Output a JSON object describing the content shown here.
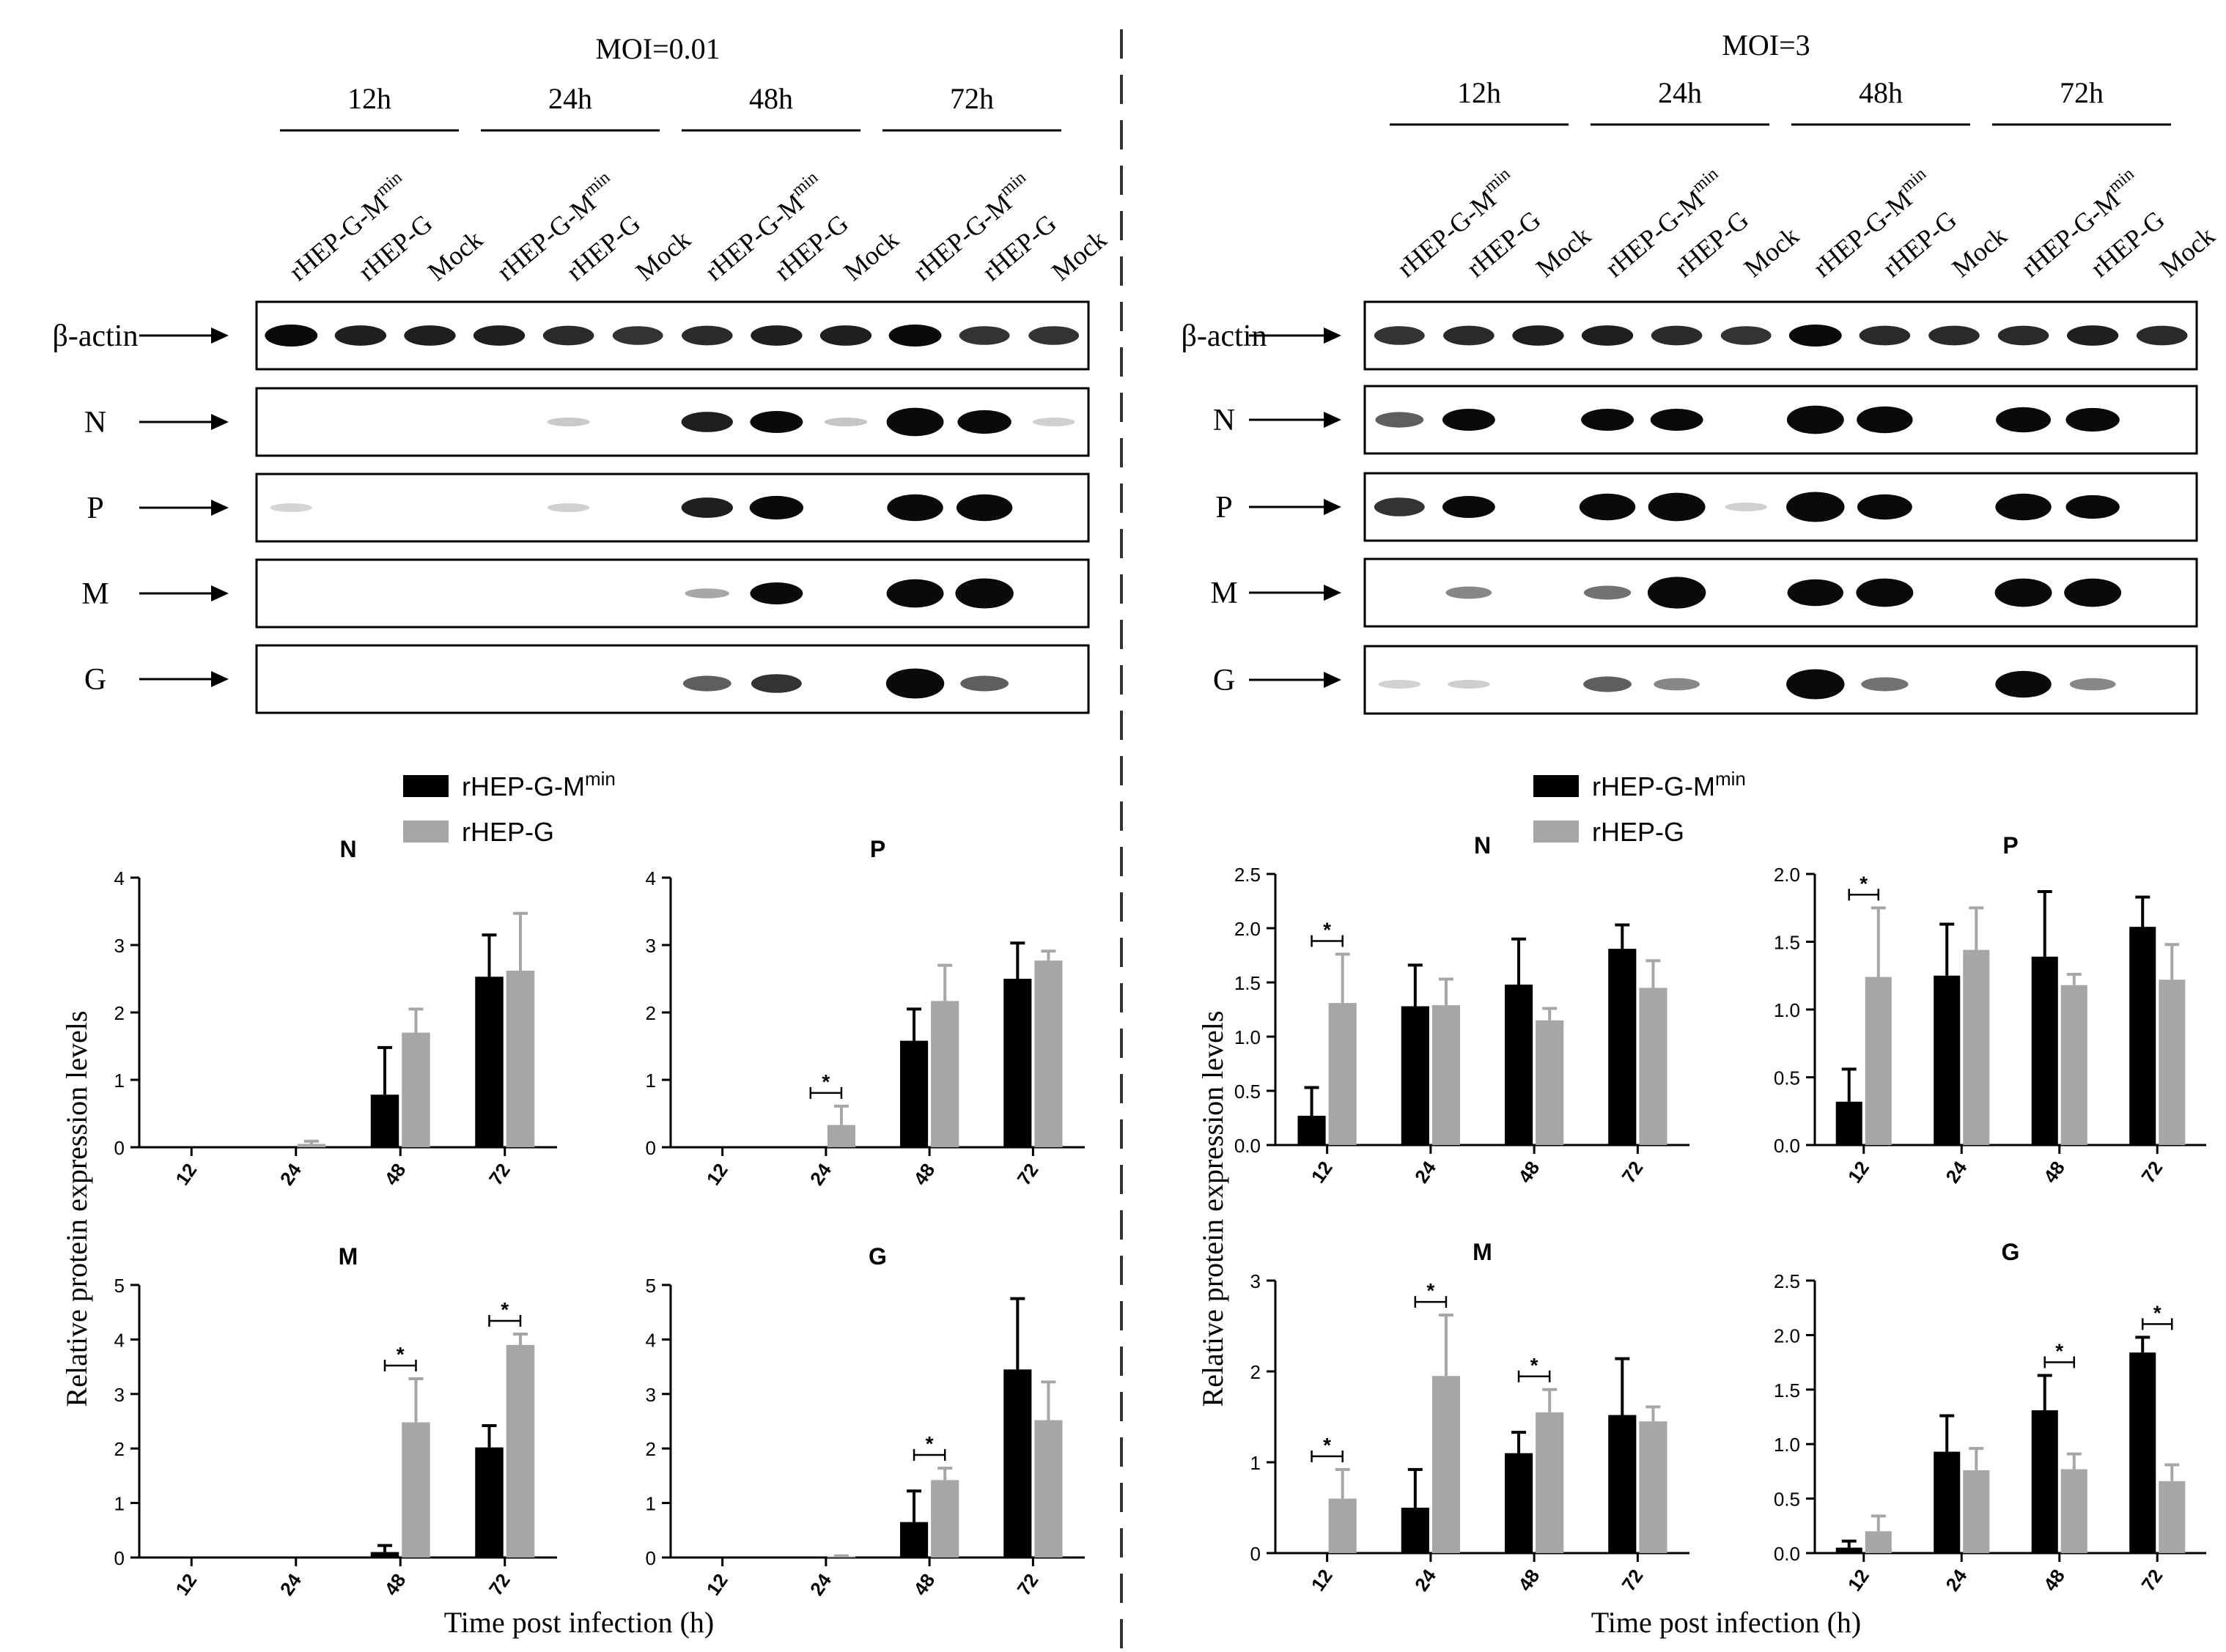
{
  "colors": {
    "black_series": "#000000",
    "grey_series": "#a6a6a6",
    "band": "#0a0a0a"
  },
  "panels": [
    {
      "moi_label": "MOI=0.01",
      "times": [
        "12h",
        "24h",
        "48h",
        "72h"
      ],
      "lanes": [
        "rHEP-G-M",
        "rHEP-G",
        "Mock",
        "rHEP-G-M",
        "rHEP-G",
        "Mock",
        "rHEP-G-M",
        "rHEP-G",
        "Mock",
        "rHEP-G-M",
        "rHEP-G",
        "Mock"
      ],
      "lane_superscript": "min",
      "blots": [
        {
          "label": "β-actin",
          "bands": [
            1,
            0.9,
            0.9,
            0.9,
            0.85,
            0.8,
            0.85,
            0.9,
            0.9,
            1,
            0.8,
            0.8
          ]
        },
        {
          "label": "N",
          "bands": [
            0,
            0,
            0,
            0,
            0.08,
            0,
            0.9,
            1,
            0.1,
            1.4,
            1.1,
            0.05
          ]
        },
        {
          "label": "P",
          "bands": [
            0.03,
            0,
            0,
            0,
            0.05,
            0,
            0.9,
            1.1,
            0,
            1.3,
            1.3,
            0
          ]
        },
        {
          "label": "M",
          "bands": [
            0,
            0,
            0,
            0,
            0,
            0,
            0.25,
            1,
            0,
            1.4,
            1.5,
            0
          ]
        },
        {
          "label": "G",
          "bands": [
            0,
            0,
            0,
            0,
            0,
            0,
            0.6,
            0.8,
            0,
            1.5,
            0.6,
            0
          ]
        }
      ]
    },
    {
      "moi_label": "MOI=3",
      "times": [
        "12h",
        "24h",
        "48h",
        "72h"
      ],
      "lanes": [
        "rHEP-G-M",
        "rHEP-G",
        "Mock",
        "rHEP-G-M",
        "rHEP-G",
        "Mock",
        "rHEP-G-M",
        "rHEP-G",
        "Mock",
        "rHEP-G-M",
        "rHEP-G",
        "Mock"
      ],
      "lane_superscript": "min",
      "blots": [
        {
          "label": "β-actin",
          "bands": [
            0.8,
            0.85,
            0.9,
            0.9,
            0.85,
            0.8,
            1,
            0.85,
            0.85,
            0.85,
            0.9,
            0.85
          ]
        },
        {
          "label": "N",
          "bands": [
            0.6,
            1,
            0,
            1,
            1,
            0,
            1.4,
            1.3,
            0,
            1.2,
            1.1,
            0
          ]
        },
        {
          "label": "P",
          "bands": [
            0.8,
            1,
            0,
            1.3,
            1.4,
            0.05,
            1.5,
            1.2,
            0,
            1.3,
            1.1,
            0
          ]
        },
        {
          "label": "M",
          "bands": [
            0,
            0.4,
            0,
            0.5,
            1.6,
            0,
            1.3,
            1.4,
            0,
            1.4,
            1.4,
            0
          ]
        },
        {
          "label": "G",
          "bands": [
            0.04,
            0.06,
            0,
            0.6,
            0.4,
            0,
            1.5,
            0.5,
            0,
            1.3,
            0.4,
            0
          ]
        }
      ]
    }
  ],
  "legend": {
    "series1": "rHEP-G-M",
    "series1_sup": "min",
    "series2": "rHEP-G"
  },
  "y_axis_label": "Relative protein expression levels",
  "x_axis_label": "Time post infection (h)",
  "chart_data": [
    {
      "type": "bar",
      "title": "N",
      "moi": "MOI=0.01",
      "categories": [
        "12",
        "24",
        "48",
        "72"
      ],
      "ylim": [
        0,
        4
      ],
      "ytick_step": 1,
      "tick_decimals": 0,
      "series": [
        {
          "name": "rHEP-G-Mmin",
          "values": [
            0,
            0,
            0.78,
            2.53
          ],
          "errors": [
            0,
            0,
            0.7,
            0.62
          ]
        },
        {
          "name": "rHEP-G",
          "values": [
            0,
            0.05,
            1.7,
            2.62
          ],
          "errors": [
            0,
            0.04,
            0.35,
            0.85
          ]
        }
      ],
      "significance": []
    },
    {
      "type": "bar",
      "title": "P",
      "moi": "MOI=0.01",
      "categories": [
        "12",
        "24",
        "48",
        "72"
      ],
      "ylim": [
        0,
        4
      ],
      "ytick_step": 1,
      "tick_decimals": 0,
      "series": [
        {
          "name": "rHEP-G-Mmin",
          "values": [
            0,
            0,
            1.58,
            2.5
          ],
          "errors": [
            0,
            0,
            0.47,
            0.53
          ]
        },
        {
          "name": "rHEP-G",
          "values": [
            0,
            0.33,
            2.17,
            2.77
          ],
          "errors": [
            0,
            0.28,
            0.53,
            0.14
          ]
        }
      ],
      "significance": [
        {
          "category": 1,
          "label": "*"
        }
      ]
    },
    {
      "type": "bar",
      "title": "M",
      "moi": "MOI=0.01",
      "categories": [
        "12",
        "24",
        "48",
        "72"
      ],
      "ylim": [
        0,
        5
      ],
      "ytick_step": 1,
      "tick_decimals": 0,
      "series": [
        {
          "name": "rHEP-G-Mmin",
          "values": [
            0,
            0,
            0.1,
            2.02
          ],
          "errors": [
            0,
            0,
            0.12,
            0.4
          ]
        },
        {
          "name": "rHEP-G",
          "values": [
            0,
            0,
            2.48,
            3.9
          ],
          "errors": [
            0,
            0,
            0.8,
            0.2
          ]
        }
      ],
      "significance": [
        {
          "category": 2,
          "label": "*"
        },
        {
          "category": 3,
          "label": "*"
        }
      ]
    },
    {
      "type": "bar",
      "title": "G",
      "moi": "MOI=0.01",
      "categories": [
        "12",
        "24",
        "48",
        "72"
      ],
      "ylim": [
        0,
        5
      ],
      "ytick_step": 1,
      "tick_decimals": 0,
      "series": [
        {
          "name": "rHEP-G-Mmin",
          "values": [
            0,
            0,
            0.65,
            3.45
          ],
          "errors": [
            0,
            0,
            0.57,
            1.3
          ]
        },
        {
          "name": "rHEP-G",
          "values": [
            0,
            0.02,
            1.42,
            2.52
          ],
          "errors": [
            0,
            0.01,
            0.22,
            0.7
          ]
        }
      ],
      "significance": [
        {
          "category": 2,
          "label": "*"
        }
      ]
    },
    {
      "type": "bar",
      "title": "N",
      "moi": "MOI=3",
      "categories": [
        "12",
        "24",
        "48",
        "72"
      ],
      "ylim": [
        0,
        2.5
      ],
      "ytick_step": 0.5,
      "tick_decimals": 1,
      "series": [
        {
          "name": "rHEP-G-Mmin",
          "values": [
            0.27,
            1.28,
            1.48,
            1.81
          ],
          "errors": [
            0.26,
            0.38,
            0.42,
            0.22
          ]
        },
        {
          "name": "rHEP-G",
          "values": [
            1.31,
            1.29,
            1.15,
            1.45
          ],
          "errors": [
            0.45,
            0.24,
            0.11,
            0.25
          ]
        }
      ],
      "significance": [
        {
          "category": 0,
          "label": "*"
        }
      ]
    },
    {
      "type": "bar",
      "title": "P",
      "moi": "MOI=3",
      "categories": [
        "12",
        "24",
        "48",
        "72"
      ],
      "ylim": [
        0,
        2.0
      ],
      "ytick_step": 0.5,
      "tick_decimals": 1,
      "series": [
        {
          "name": "rHEP-G-Mmin",
          "values": [
            0.32,
            1.25,
            1.39,
            1.61
          ],
          "errors": [
            0.24,
            0.38,
            0.48,
            0.22
          ]
        },
        {
          "name": "rHEP-G",
          "values": [
            1.24,
            1.44,
            1.18,
            1.22
          ],
          "errors": [
            0.51,
            0.31,
            0.08,
            0.26
          ]
        }
      ],
      "significance": [
        {
          "category": 0,
          "label": "*"
        }
      ]
    },
    {
      "type": "bar",
      "title": "M",
      "moi": "MOI=3",
      "categories": [
        "12",
        "24",
        "48",
        "72"
      ],
      "ylim": [
        0,
        3
      ],
      "ytick_step": 1,
      "tick_decimals": 0,
      "series": [
        {
          "name": "rHEP-G-Mmin",
          "values": [
            0,
            0.5,
            1.1,
            1.52
          ],
          "errors": [
            0,
            0.42,
            0.23,
            0.62
          ]
        },
        {
          "name": "rHEP-G",
          "values": [
            0.6,
            1.95,
            1.55,
            1.45
          ],
          "errors": [
            0.32,
            0.67,
            0.25,
            0.16
          ]
        }
      ],
      "significance": [
        {
          "category": 0,
          "label": "*"
        },
        {
          "category": 1,
          "label": "*"
        },
        {
          "category": 2,
          "label": "*"
        }
      ]
    },
    {
      "type": "bar",
      "title": "G",
      "moi": "MOI=3",
      "categories": [
        "12",
        "24",
        "48",
        "72"
      ],
      "ylim": [
        0,
        2.5
      ],
      "ytick_step": 0.5,
      "tick_decimals": 1,
      "series": [
        {
          "name": "rHEP-G-Mmin",
          "values": [
            0.05,
            0.93,
            1.31,
            1.84
          ],
          "errors": [
            0.06,
            0.33,
            0.32,
            0.14
          ]
        },
        {
          "name": "rHEP-G",
          "values": [
            0.2,
            0.76,
            0.77,
            0.66
          ],
          "errors": [
            0.14,
            0.2,
            0.14,
            0.15
          ]
        }
      ],
      "significance": [
        {
          "category": 2,
          "label": "*"
        },
        {
          "category": 3,
          "label": "*"
        }
      ]
    }
  ]
}
